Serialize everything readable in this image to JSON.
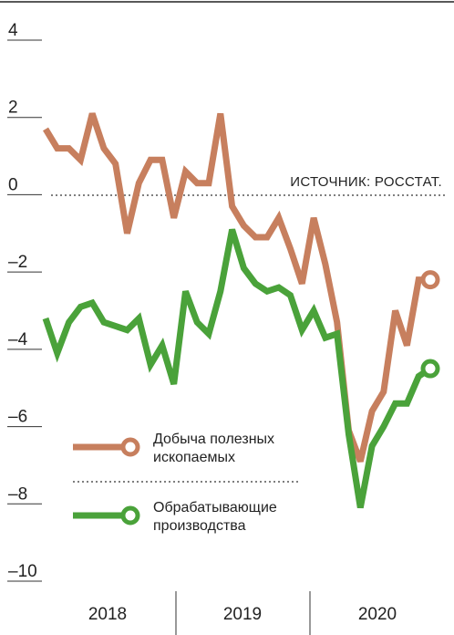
{
  "chart_data": {
    "type": "line",
    "title": "",
    "xlabel": "",
    "ylabel": "",
    "ylim": [
      -10,
      4
    ],
    "yticks": [
      {
        "value": 4,
        "label": "4"
      },
      {
        "value": 2,
        "label": "2"
      },
      {
        "value": 0,
        "label": "0"
      },
      {
        "value": -2,
        "label": "–2"
      },
      {
        "value": -4,
        "label": "–4"
      },
      {
        "value": -6,
        "label": "–6"
      },
      {
        "value": -8,
        "label": "–8"
      },
      {
        "value": -10,
        "label": "–10"
      }
    ],
    "years": [
      "2018",
      "2019",
      "2020"
    ],
    "months_per_year": 12,
    "source": "ИСТОЧНИК: РОССТАТ.",
    "grid": false,
    "zero_line": "dotted",
    "legend_position": "bottom-left",
    "series": [
      {
        "name": "Добыча полезных ископаемых",
        "color": "#c77f5e",
        "values": [
          1.7,
          1.2,
          1.2,
          0.9,
          2.1,
          1.2,
          0.8,
          -1.0,
          0.3,
          0.9,
          0.9,
          -0.6,
          0.6,
          0.3,
          0.3,
          2.1,
          -0.3,
          -0.8,
          -1.1,
          -1.1,
          -0.6,
          -1.4,
          -2.3,
          -0.6,
          -1.8,
          -3.3,
          -6.1,
          -6.9,
          -5.6,
          -5.1,
          -3.0,
          -3.9,
          -2.2,
          -2.2
        ]
      },
      {
        "name": "Обрабатывающие производства",
        "color": "#4aa23a",
        "values": [
          -3.2,
          -4.1,
          -3.3,
          -2.9,
          -2.8,
          -3.3,
          -3.4,
          -3.5,
          -3.2,
          -4.4,
          -3.9,
          -4.9,
          -2.5,
          -3.3,
          -3.6,
          -2.5,
          -0.9,
          -1.9,
          -2.3,
          -2.5,
          -2.4,
          -2.6,
          -3.5,
          -3.0,
          -3.7,
          -3.6,
          -6.2,
          -8.1,
          -6.5,
          -6.0,
          -5.4,
          -5.4,
          -4.7,
          -4.5
        ]
      }
    ]
  }
}
